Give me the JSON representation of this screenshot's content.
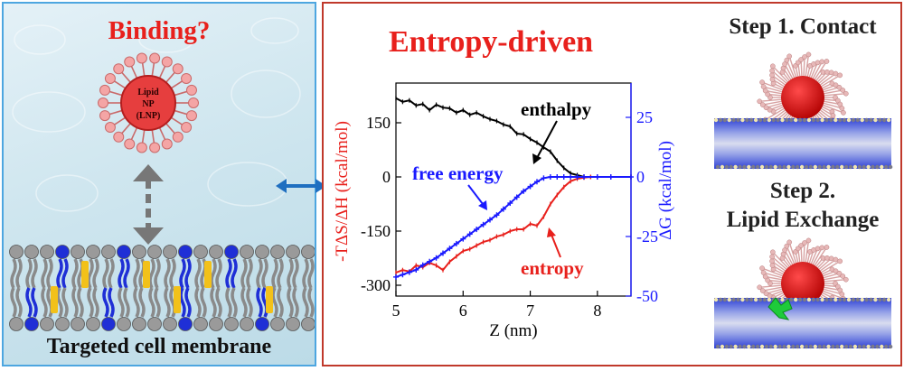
{
  "left_panel": {
    "question": "Binding?",
    "lnp_label": [
      "Lipid",
      "NP",
      "(LNP)"
    ],
    "membrane_caption": "Targeted cell membrane"
  },
  "right_panel": {
    "title": "Entropy-driven",
    "step1": "Step 1. Contact",
    "step2_line1": "Step 2.",
    "step2_line2": "Lipid Exchange"
  },
  "colors": {
    "left_border": "#4da6e0",
    "right_border": "#c0392b",
    "title_red": "#e8201c",
    "enthalpy": "#000000",
    "entropy": "#e8201c",
    "free_energy": "#1a1aff",
    "arrow_blue": "#1f6fc0"
  },
  "chart_data": {
    "type": "line",
    "xlabel": "Z (nm)",
    "ylabel_left": "-TΔS/ΔH (kcal/mol)",
    "ylabel_right": "ΔG (kcal/mol)",
    "xlim": [
      5,
      8.5
    ],
    "ylim_left": [
      -330,
      260
    ],
    "ylim_right": [
      -50,
      39.4
    ],
    "x_ticks": [
      "5",
      "6",
      "7",
      "8"
    ],
    "y_left_ticks": [
      "150",
      "0",
      "-150",
      "-300"
    ],
    "y_right_ticks": [
      "25",
      "0",
      "-25",
      "-50"
    ],
    "series": [
      {
        "name": "enthalpy",
        "axis": "left",
        "x": [
          5.0,
          5.1,
          5.2,
          5.3,
          5.4,
          5.5,
          5.6,
          5.7,
          5.8,
          5.9,
          6.0,
          6.1,
          6.2,
          6.3,
          6.4,
          6.5,
          6.6,
          6.7,
          6.8,
          6.9,
          7.0,
          7.1,
          7.2,
          7.3,
          7.4,
          7.5,
          7.6,
          7.7,
          7.8,
          7.9,
          8.0,
          8.2,
          8.5
        ],
        "y": [
          218,
          208,
          212,
          198,
          202,
          185,
          200,
          192,
          190,
          178,
          185,
          172,
          178,
          168,
          160,
          155,
          145,
          140,
          120,
          118,
          105,
          95,
          82,
          70,
          45,
          25,
          10,
          5,
          0,
          0,
          0,
          0,
          0
        ]
      },
      {
        "name": "entropy",
        "axis": "left",
        "x": [
          5.0,
          5.1,
          5.2,
          5.3,
          5.4,
          5.5,
          5.6,
          5.7,
          5.8,
          5.9,
          6.0,
          6.1,
          6.2,
          6.3,
          6.4,
          6.5,
          6.6,
          6.7,
          6.8,
          6.9,
          7.0,
          7.1,
          7.2,
          7.3,
          7.4,
          7.5,
          7.6,
          7.7,
          7.8,
          7.9,
          8.0,
          8.2,
          8.5
        ],
        "y": [
          -265,
          -258,
          -262,
          -245,
          -250,
          -238,
          -245,
          -258,
          -235,
          -220,
          -205,
          -200,
          -190,
          -180,
          -175,
          -165,
          -160,
          -150,
          -145,
          -145,
          -130,
          -135,
          -110,
          -75,
          -50,
          -28,
          -12,
          -5,
          -2,
          0,
          0,
          0,
          0
        ]
      },
      {
        "name": "free energy",
        "axis": "right",
        "x": [
          5.0,
          5.1,
          5.2,
          5.3,
          5.4,
          5.5,
          5.6,
          5.7,
          5.8,
          5.9,
          6.0,
          6.1,
          6.2,
          6.3,
          6.4,
          6.5,
          6.6,
          6.7,
          6.8,
          6.9,
          7.0,
          7.1,
          7.2,
          7.3,
          7.4,
          7.5,
          7.6,
          7.7,
          7.8,
          8.0,
          8.2,
          8.5
        ],
        "y": [
          -42,
          -41,
          -40,
          -39,
          -37,
          -35.5,
          -34,
          -32,
          -30,
          -28,
          -26,
          -24,
          -22,
          -20,
          -18,
          -16,
          -13.5,
          -11,
          -8.5,
          -6,
          -4,
          -2,
          -0.5,
          0,
          0,
          0,
          0,
          0,
          0,
          0,
          0,
          0
        ]
      }
    ],
    "annotations": [
      "enthalpy",
      "free energy",
      "entropy"
    ]
  }
}
